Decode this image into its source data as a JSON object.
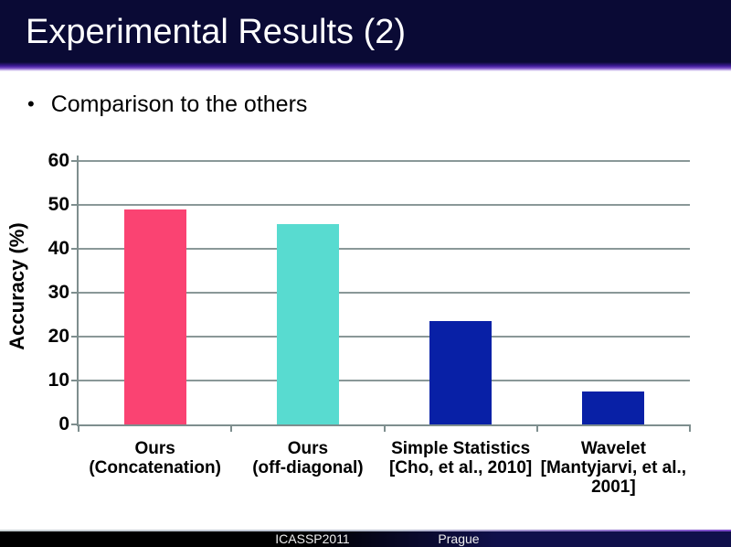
{
  "slide": {
    "title": "Experimental Results (2)",
    "bullet_char": "•",
    "bullet": "Comparison to the others"
  },
  "footer": {
    "conference": "ICASSP2011",
    "location": "Prague"
  },
  "colors": {
    "title_bar_navy": "#0a0a35",
    "accent_purple": "#4c21a8",
    "axis_gray": "#8a9898",
    "bar_pink": "#fa4372",
    "bar_teal": "#58dbd0",
    "bar_blue": "#0820a6",
    "footer_navy": "#10104b"
  },
  "chart_data": {
    "type": "bar",
    "title": "",
    "xlabel": "",
    "ylabel": "Accuracy (%)",
    "ylim": [
      0,
      60
    ],
    "ytick_step": 10,
    "grid": true,
    "legend_position": "none",
    "categories": [
      "Ours (Concatenation)",
      "Ours (off-diagonal)",
      "Simple Statistics [Cho, et al., 2010]",
      "Wavelet [Mantyjarvi, et al., 2001]"
    ],
    "category_lines": [
      [
        "Ours",
        "(Concatenation)"
      ],
      [
        "Ours",
        "(off-diagonal)"
      ],
      [
        "Simple Statistics",
        "[Cho, et al., 2010]"
      ],
      [
        "Wavelet",
        "[Mantyjarvi, et al.,",
        "2001]"
      ]
    ],
    "values": [
      49,
      45.7,
      23.6,
      7.4
    ],
    "bar_colors": [
      "#fa4372",
      "#58dbd0",
      "#0820a6",
      "#0820a6"
    ]
  }
}
